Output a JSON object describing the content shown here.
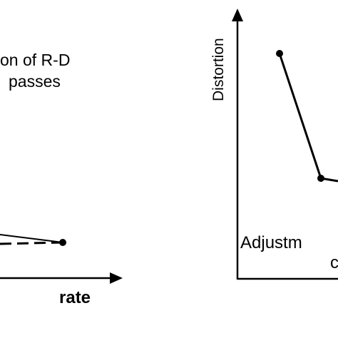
{
  "left_panel": {
    "title_lines": [
      "on of R-D",
      "passes"
    ],
    "x_axis_label": "rate"
  },
  "right_panel": {
    "y_axis_label": "Distortion",
    "annotation": "Adjustm",
    "annotation_line2": "c"
  }
}
